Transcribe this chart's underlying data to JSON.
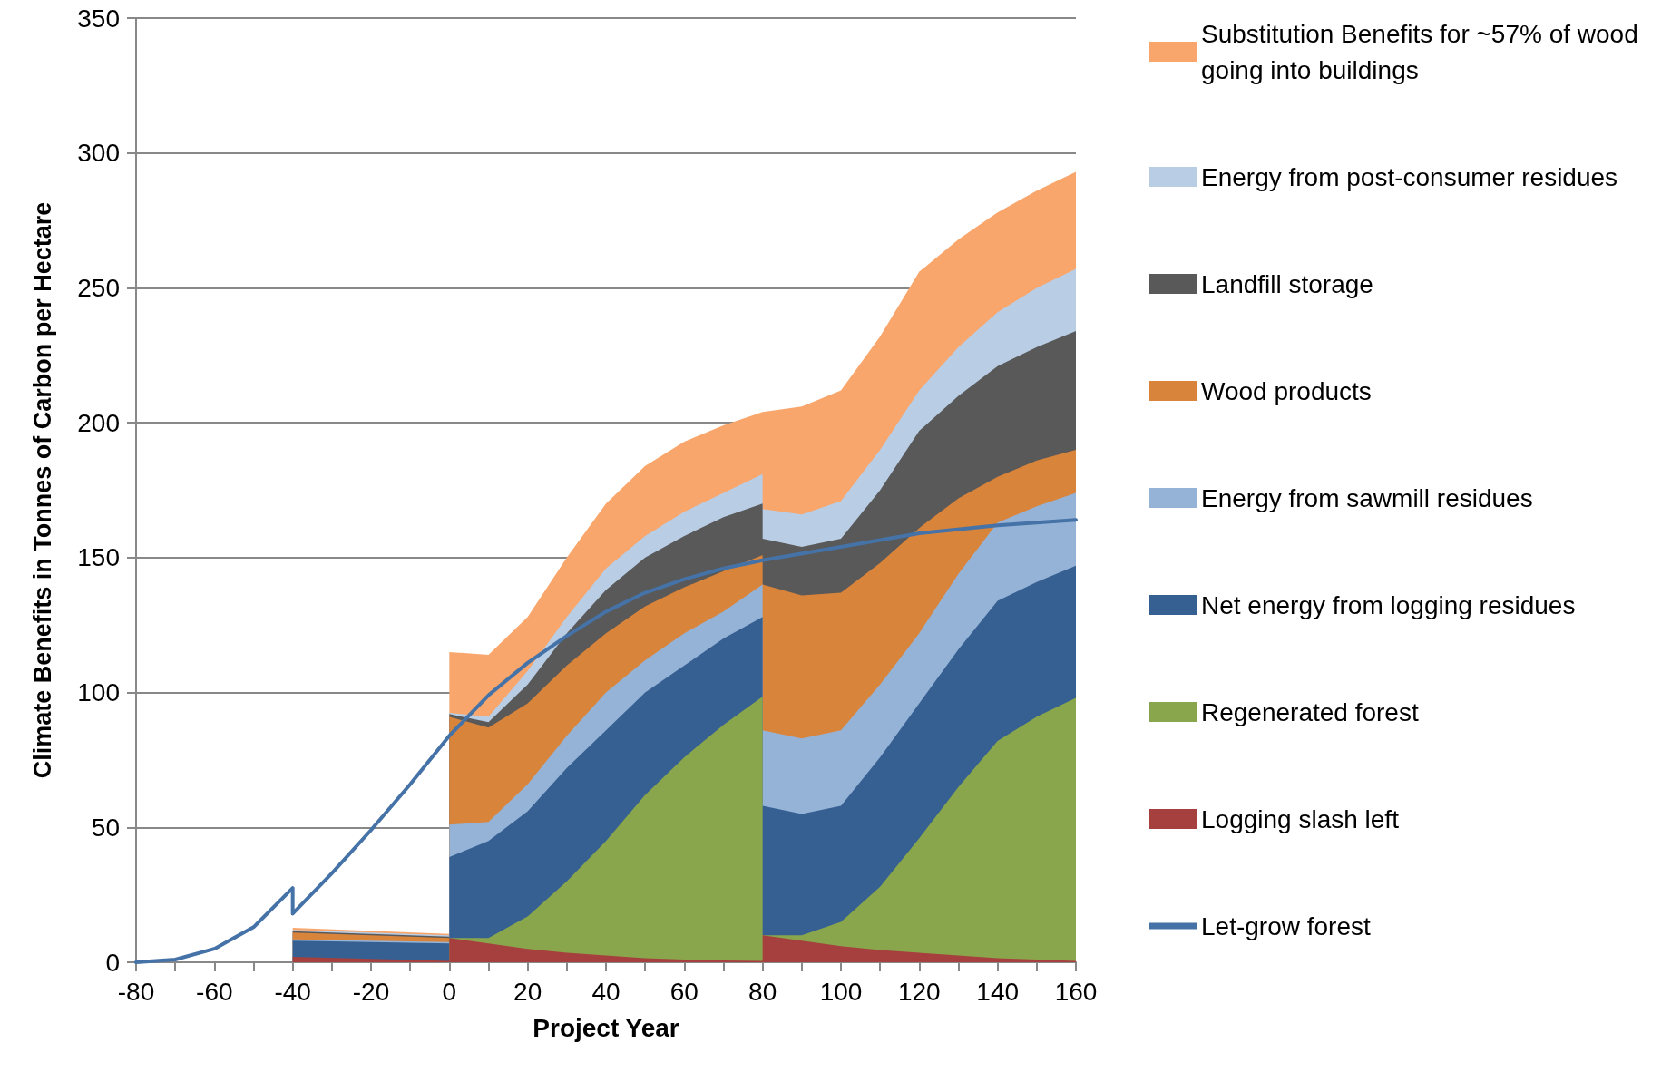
{
  "chart_data": {
    "type": "area",
    "stacked": true,
    "xlabel": "Project Year",
    "ylabel": "Climate Benefits in Tonnes of Carbon per Hectare",
    "x": [
      -40,
      0,
      0,
      10,
      20,
      30,
      40,
      50,
      60,
      70,
      80,
      80,
      90,
      100,
      110,
      120,
      130,
      140,
      150,
      160
    ],
    "series": [
      {
        "name": "Logging slash left",
        "color": "#a5403f",
        "values": [
          2,
          0.5,
          9,
          7,
          5,
          3.5,
          2.5,
          1.5,
          1,
          0.7,
          0.5,
          10,
          8,
          6,
          4.5,
          3.5,
          2.5,
          1.5,
          1,
          0.5
        ]
      },
      {
        "name": "Regenerated forest",
        "color": "#8aa64c",
        "values": [
          null,
          null,
          0,
          2,
          12,
          26.5,
          42.5,
          60.5,
          75,
          87.3,
          98,
          0,
          2,
          9,
          23.5,
          42.5,
          62.5,
          80.5,
          90,
          97.5
        ]
      },
      {
        "name": "Net energy from logging residues",
        "color": "#376092",
        "values": [
          6,
          6.5,
          30,
          36,
          39,
          42,
          41,
          38,
          34,
          32,
          29.5,
          48,
          45,
          43,
          48,
          50,
          51,
          52,
          50,
          49
        ]
      },
      {
        "name": "Energy from sawmill residues",
        "color": "#95b3d7",
        "values": [
          0.5,
          0.5,
          12,
          7,
          10,
          12,
          14,
          12,
          12,
          10,
          12,
          28,
          28,
          28,
          27,
          26,
          28,
          29,
          28,
          27
        ]
      },
      {
        "name": "Wood products",
        "color": "#d9843b",
        "values": [
          2.5,
          1.5,
          40,
          35,
          30,
          26,
          22,
          20,
          17,
          15,
          11,
          54,
          53,
          51,
          45,
          39,
          28,
          17,
          17,
          16
        ]
      },
      {
        "name": "Landfill storage",
        "color": "#595959",
        "values": [
          0.5,
          0.5,
          1,
          2,
          7,
          12,
          16,
          18,
          19,
          20,
          19,
          17,
          18,
          20,
          27,
          36,
          38,
          41,
          42,
          44
        ]
      },
      {
        "name": "Energy from post-consumer residues",
        "color": "#b9cde5",
        "values": [
          0.5,
          0.5,
          0.5,
          2,
          5,
          6,
          8,
          8,
          9,
          9,
          11,
          11,
          12,
          14,
          15,
          15,
          18,
          20,
          22,
          23
        ]
      },
      {
        "name": "Substitution Benefits for ~57% of wood going into buildings",
        "color": "#f9a66c",
        "values": [
          0.8,
          0.5,
          22.5,
          23,
          20,
          22,
          24,
          26,
          26,
          25,
          23,
          36,
          40,
          41,
          42,
          44,
          40,
          37,
          36,
          36
        ]
      },
      {
        "name": "Let-grow forest",
        "type": "line",
        "color": "#4572a7",
        "marker": "none",
        "x": [
          -80,
          -70,
          -60,
          -50,
          -40,
          -40,
          -30,
          -20,
          -10,
          0,
          10,
          20,
          30,
          40,
          50,
          60,
          70,
          80,
          100,
          120,
          140,
          160
        ],
        "values": [
          0,
          1,
          5,
          13,
          27.5,
          18,
          33,
          49,
          66,
          84,
          99,
          111,
          121,
          130,
          137,
          142,
          146,
          149,
          154,
          159,
          162,
          164
        ]
      }
    ],
    "xlim": [
      -80,
      160
    ],
    "xticks": [
      -80,
      {
        "value": -70,
        "label": null
      },
      -60,
      {
        "value": -50,
        "label": null
      },
      -40,
      {
        "value": -30,
        "label": null
      },
      -20,
      {
        "value": -10,
        "label": null
      },
      0,
      {
        "value": 10,
        "label": null
      },
      20,
      {
        "value": 30,
        "label": null
      },
      40,
      {
        "value": 50,
        "label": null
      },
      60,
      {
        "value": 70,
        "label": null
      },
      80,
      {
        "value": 90,
        "label": null
      },
      100,
      {
        "value": 110,
        "label": null
      },
      120,
      {
        "value": 130,
        "label": null
      },
      140,
      {
        "value": 150,
        "label": null
      },
      160
    ],
    "ylim": [
      0,
      350
    ],
    "yticks": [
      0,
      50,
      100,
      150,
      200,
      250,
      300,
      350
    ],
    "grid": "y",
    "legend": "right"
  }
}
